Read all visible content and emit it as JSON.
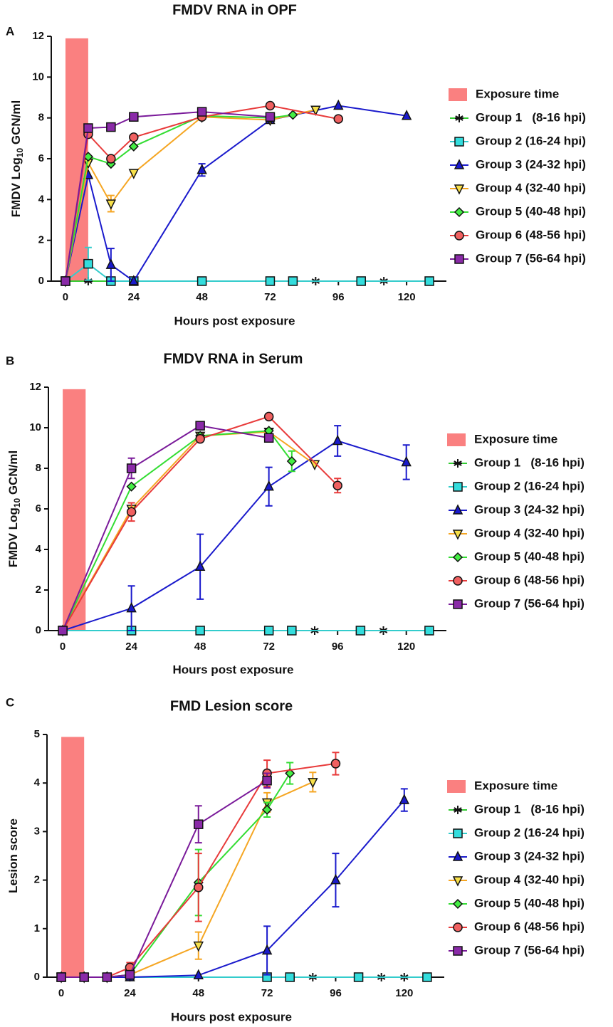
{
  "chart_data": [
    {
      "type": "line",
      "panel": "A",
      "title": "FMDV RNA in OPF",
      "xlabel": "Hours post exposure",
      "ylabel": "FMDV Log",
      "ylabel_sub": "10",
      "ylabel_end": " GCN/ml",
      "xlim": [
        -5,
        134
      ],
      "ylim": [
        0,
        12
      ],
      "xticks": [
        0,
        24,
        48,
        72,
        96,
        120
      ],
      "yticks": [
        0,
        2,
        4,
        6,
        8,
        10,
        12
      ],
      "exposure": {
        "label": "Exposure time",
        "x": [
          0,
          8
        ],
        "top": 11.9,
        "color": "#fa8080"
      },
      "series": [
        {
          "name": "Group 1   (8-16 hpi)",
          "color": "#33cc33",
          "marker": "asterisk",
          "marker_color": "#111111",
          "x": [
            0,
            8,
            88,
            112
          ],
          "values": [
            0,
            0,
            0,
            0
          ],
          "errors": [
            null,
            null,
            null,
            null
          ]
        },
        {
          "name": "Group 2 (16-24 hpi)",
          "color": "#33cccc",
          "marker": "square",
          "marker_color": "#33dddd",
          "x": [
            0,
            8,
            16,
            24,
            48,
            72,
            80,
            104,
            128
          ],
          "values": [
            0,
            0.85,
            0,
            0,
            0,
            0,
            0,
            0,
            0
          ],
          "errors": [
            null,
            0.8,
            null,
            null,
            null,
            null,
            null,
            null,
            null
          ]
        },
        {
          "name": "Group 3 (24-32 hpi)",
          "color": "#1a1acc",
          "marker": "triangle",
          "marker_color": "#1a1acc",
          "x": [
            0,
            8,
            16,
            24,
            48,
            72,
            96,
            120
          ],
          "values": [
            0,
            5.2,
            0.8,
            0,
            5.45,
            7.9,
            8.6,
            8.1
          ],
          "errors": [
            null,
            null,
            0.8,
            null,
            0.3,
            null,
            null,
            null
          ]
        },
        {
          "name": "Group 4 (32-40 hpi)",
          "color": "#f5a623",
          "marker": "tri-down",
          "marker_color": "#f7e04a",
          "x": [
            0,
            8,
            16,
            24,
            48,
            72,
            88
          ],
          "values": [
            0,
            5.8,
            3.8,
            5.3,
            8.05,
            7.9,
            8.4
          ],
          "errors": [
            null,
            null,
            0.4,
            null,
            null,
            null,
            null
          ]
        },
        {
          "name": "Group 5 (40-48 hpi)",
          "color": "#33dd33",
          "marker": "diamond",
          "marker_color": "#44ee44",
          "x": [
            0,
            8,
            16,
            24,
            48,
            72,
            80
          ],
          "values": [
            0,
            6.1,
            5.75,
            6.6,
            8.1,
            8.0,
            8.15
          ],
          "errors": [
            null,
            null,
            null,
            null,
            null,
            null,
            null
          ]
        },
        {
          "name": "Group 6 (48-56 hpi)",
          "color": "#e83a3a",
          "marker": "circle",
          "marker_color": "#f06060",
          "x": [
            0,
            8,
            16,
            24,
            48,
            72,
            96
          ],
          "values": [
            0,
            7.2,
            6.0,
            7.05,
            8.05,
            8.6,
            7.95
          ],
          "errors": [
            null,
            null,
            null,
            null,
            null,
            null,
            null
          ]
        },
        {
          "name": "Group 7 (56-64 hpi)",
          "color": "#7a1a9a",
          "marker": "square",
          "marker_color": "#8a2aa8",
          "x": [
            0,
            8,
            16,
            24,
            48,
            72
          ],
          "values": [
            0,
            7.5,
            7.55,
            8.05,
            8.3,
            8.05
          ],
          "errors": [
            null,
            null,
            null,
            null,
            null,
            null
          ]
        }
      ]
    },
    {
      "type": "line",
      "panel": "B",
      "title": "FMDV RNA in Serum",
      "xlabel": "Hours post exposure",
      "ylabel": "FMDV Log",
      "ylabel_sub": "10",
      "ylabel_end": " GCN/ml",
      "xlim": [
        -5,
        134
      ],
      "ylim": [
        0,
        12
      ],
      "xticks": [
        0,
        24,
        48,
        72,
        96,
        120
      ],
      "yticks": [
        0,
        2,
        4,
        6,
        8,
        10,
        12
      ],
      "exposure": {
        "label": "Exposure time",
        "x": [
          0,
          8
        ],
        "top": 11.9,
        "color": "#fa8080"
      },
      "series": [
        {
          "name": "Group 1   (8-16 hpi)",
          "color": "#33cc33",
          "marker": "asterisk",
          "marker_color": "#111111",
          "x": [
            0,
            88,
            112
          ],
          "values": [
            0,
            0,
            0
          ],
          "errors": [
            null,
            null,
            null
          ]
        },
        {
          "name": "Group 2 (16-24 hpi)",
          "color": "#33cccc",
          "marker": "square",
          "marker_color": "#33dddd",
          "x": [
            0,
            24,
            48,
            72,
            80,
            104,
            128
          ],
          "values": [
            0,
            0,
            0,
            0,
            0,
            0,
            0
          ],
          "errors": [
            null,
            null,
            null,
            null,
            null,
            null,
            null
          ]
        },
        {
          "name": "Group 3 (24-32 hpi)",
          "color": "#1a1acc",
          "marker": "triangle",
          "marker_color": "#1a1acc",
          "x": [
            0,
            24,
            48,
            72,
            96,
            120
          ],
          "values": [
            0,
            1.1,
            3.15,
            7.1,
            9.35,
            8.3
          ],
          "errors": [
            null,
            1.1,
            1.6,
            0.95,
            0.75,
            0.85
          ]
        },
        {
          "name": "Group 4 (32-40 hpi)",
          "color": "#f5a623",
          "marker": "tri-down",
          "marker_color": "#f7e04a",
          "x": [
            0,
            24,
            48,
            72,
            88
          ],
          "values": [
            0,
            6.0,
            9.6,
            9.8,
            8.2
          ],
          "errors": [
            null,
            null,
            null,
            null,
            null
          ]
        },
        {
          "name": "Group 5 (40-48 hpi)",
          "color": "#33dd33",
          "marker": "diamond",
          "marker_color": "#44ee44",
          "x": [
            0,
            24,
            48,
            72,
            80
          ],
          "values": [
            0,
            7.1,
            9.6,
            9.85,
            8.35
          ],
          "errors": [
            null,
            null,
            null,
            null,
            0.5
          ]
        },
        {
          "name": "Group 6 (48-56 hpi)",
          "color": "#e83a3a",
          "marker": "circle",
          "marker_color": "#f06060",
          "x": [
            0,
            24,
            48,
            72,
            96
          ],
          "values": [
            0,
            5.85,
            9.45,
            10.55,
            7.15
          ],
          "errors": [
            null,
            0.45,
            null,
            null,
            0.35
          ]
        },
        {
          "name": "Group 7 (56-64 hpi)",
          "color": "#7a1a9a",
          "marker": "square",
          "marker_color": "#8a2aa8",
          "x": [
            0,
            24,
            48,
            72
          ],
          "values": [
            0,
            8.0,
            10.1,
            9.5
          ],
          "errors": [
            null,
            0.5,
            null,
            null
          ]
        }
      ]
    },
    {
      "type": "line",
      "panel": "C",
      "title": "FMD Lesion score",
      "xlabel": "Hours post exposure",
      "ylabel": "Lesion score",
      "xlim": [
        -5,
        134
      ],
      "ylim": [
        0,
        5
      ],
      "xticks": [
        0,
        24,
        48,
        72,
        96,
        120
      ],
      "yticks": [
        0,
        1,
        2,
        3,
        4,
        5
      ],
      "exposure": {
        "label": "Exposure time",
        "x": [
          0,
          8
        ],
        "top": 4.95,
        "color": "#fa8080"
      },
      "series": [
        {
          "name": "Group 1   (8-16 hpi)",
          "color": "#33cc33",
          "marker": "asterisk",
          "marker_color": "#111111",
          "x": [
            0,
            8,
            16,
            88,
            112,
            120
          ],
          "values": [
            0,
            0,
            0,
            0,
            0,
            0
          ],
          "errors": [
            null,
            null,
            null,
            null,
            null,
            null
          ]
        },
        {
          "name": "Group 2 (16-24 hpi)",
          "color": "#33cccc",
          "marker": "square",
          "marker_color": "#33dddd",
          "x": [
            0,
            72,
            80,
            104,
            128
          ],
          "values": [
            0,
            0,
            0,
            0,
            0
          ],
          "errors": [
            null,
            null,
            null,
            null,
            null
          ]
        },
        {
          "name": "Group 3 (24-32 hpi)",
          "color": "#1a1acc",
          "marker": "triangle",
          "marker_color": "#1a1acc",
          "x": [
            0,
            8,
            16,
            24,
            48,
            72,
            96,
            120
          ],
          "values": [
            0,
            0,
            0,
            0,
            0.04,
            0.55,
            2.0,
            3.65
          ],
          "errors": [
            null,
            null,
            null,
            null,
            null,
            0.5,
            0.55,
            0.23
          ]
        },
        {
          "name": "Group 4 (32-40 hpi)",
          "color": "#f5a623",
          "marker": "tri-down",
          "marker_color": "#f7e04a",
          "x": [
            0,
            8,
            16,
            24,
            48,
            72,
            88
          ],
          "values": [
            0,
            0,
            0,
            0.05,
            0.65,
            3.6,
            4.02
          ],
          "errors": [
            null,
            null,
            null,
            null,
            0.28,
            0.2,
            0.2
          ]
        },
        {
          "name": "Group 5 (40-48 hpi)",
          "color": "#33dd33",
          "marker": "diamond",
          "marker_color": "#44ee44",
          "x": [
            0,
            8,
            16,
            24,
            48,
            72,
            80
          ],
          "values": [
            0,
            0,
            0,
            0.05,
            1.95,
            3.45,
            4.2
          ],
          "errors": [
            null,
            null,
            null,
            null,
            0.68,
            0.15,
            0.22
          ]
        },
        {
          "name": "Group 6 (48-56 hpi)",
          "color": "#e83a3a",
          "marker": "circle",
          "marker_color": "#f06060",
          "x": [
            0,
            8,
            16,
            24,
            48,
            72,
            96
          ],
          "values": [
            0,
            0,
            0,
            0.2,
            1.85,
            4.2,
            4.4
          ],
          "errors": [
            null,
            null,
            null,
            0.1,
            0.7,
            0.27,
            0.23
          ]
        },
        {
          "name": "Group 7 (56-64 hpi)",
          "color": "#7a1a9a",
          "marker": "square",
          "marker_color": "#8a2aa8",
          "x": [
            0,
            8,
            16,
            24,
            48,
            72
          ],
          "values": [
            0,
            0,
            0,
            0.05,
            3.15,
            4.05
          ],
          "errors": [
            null,
            null,
            null,
            null,
            0.38,
            0.15
          ]
        }
      ]
    }
  ]
}
